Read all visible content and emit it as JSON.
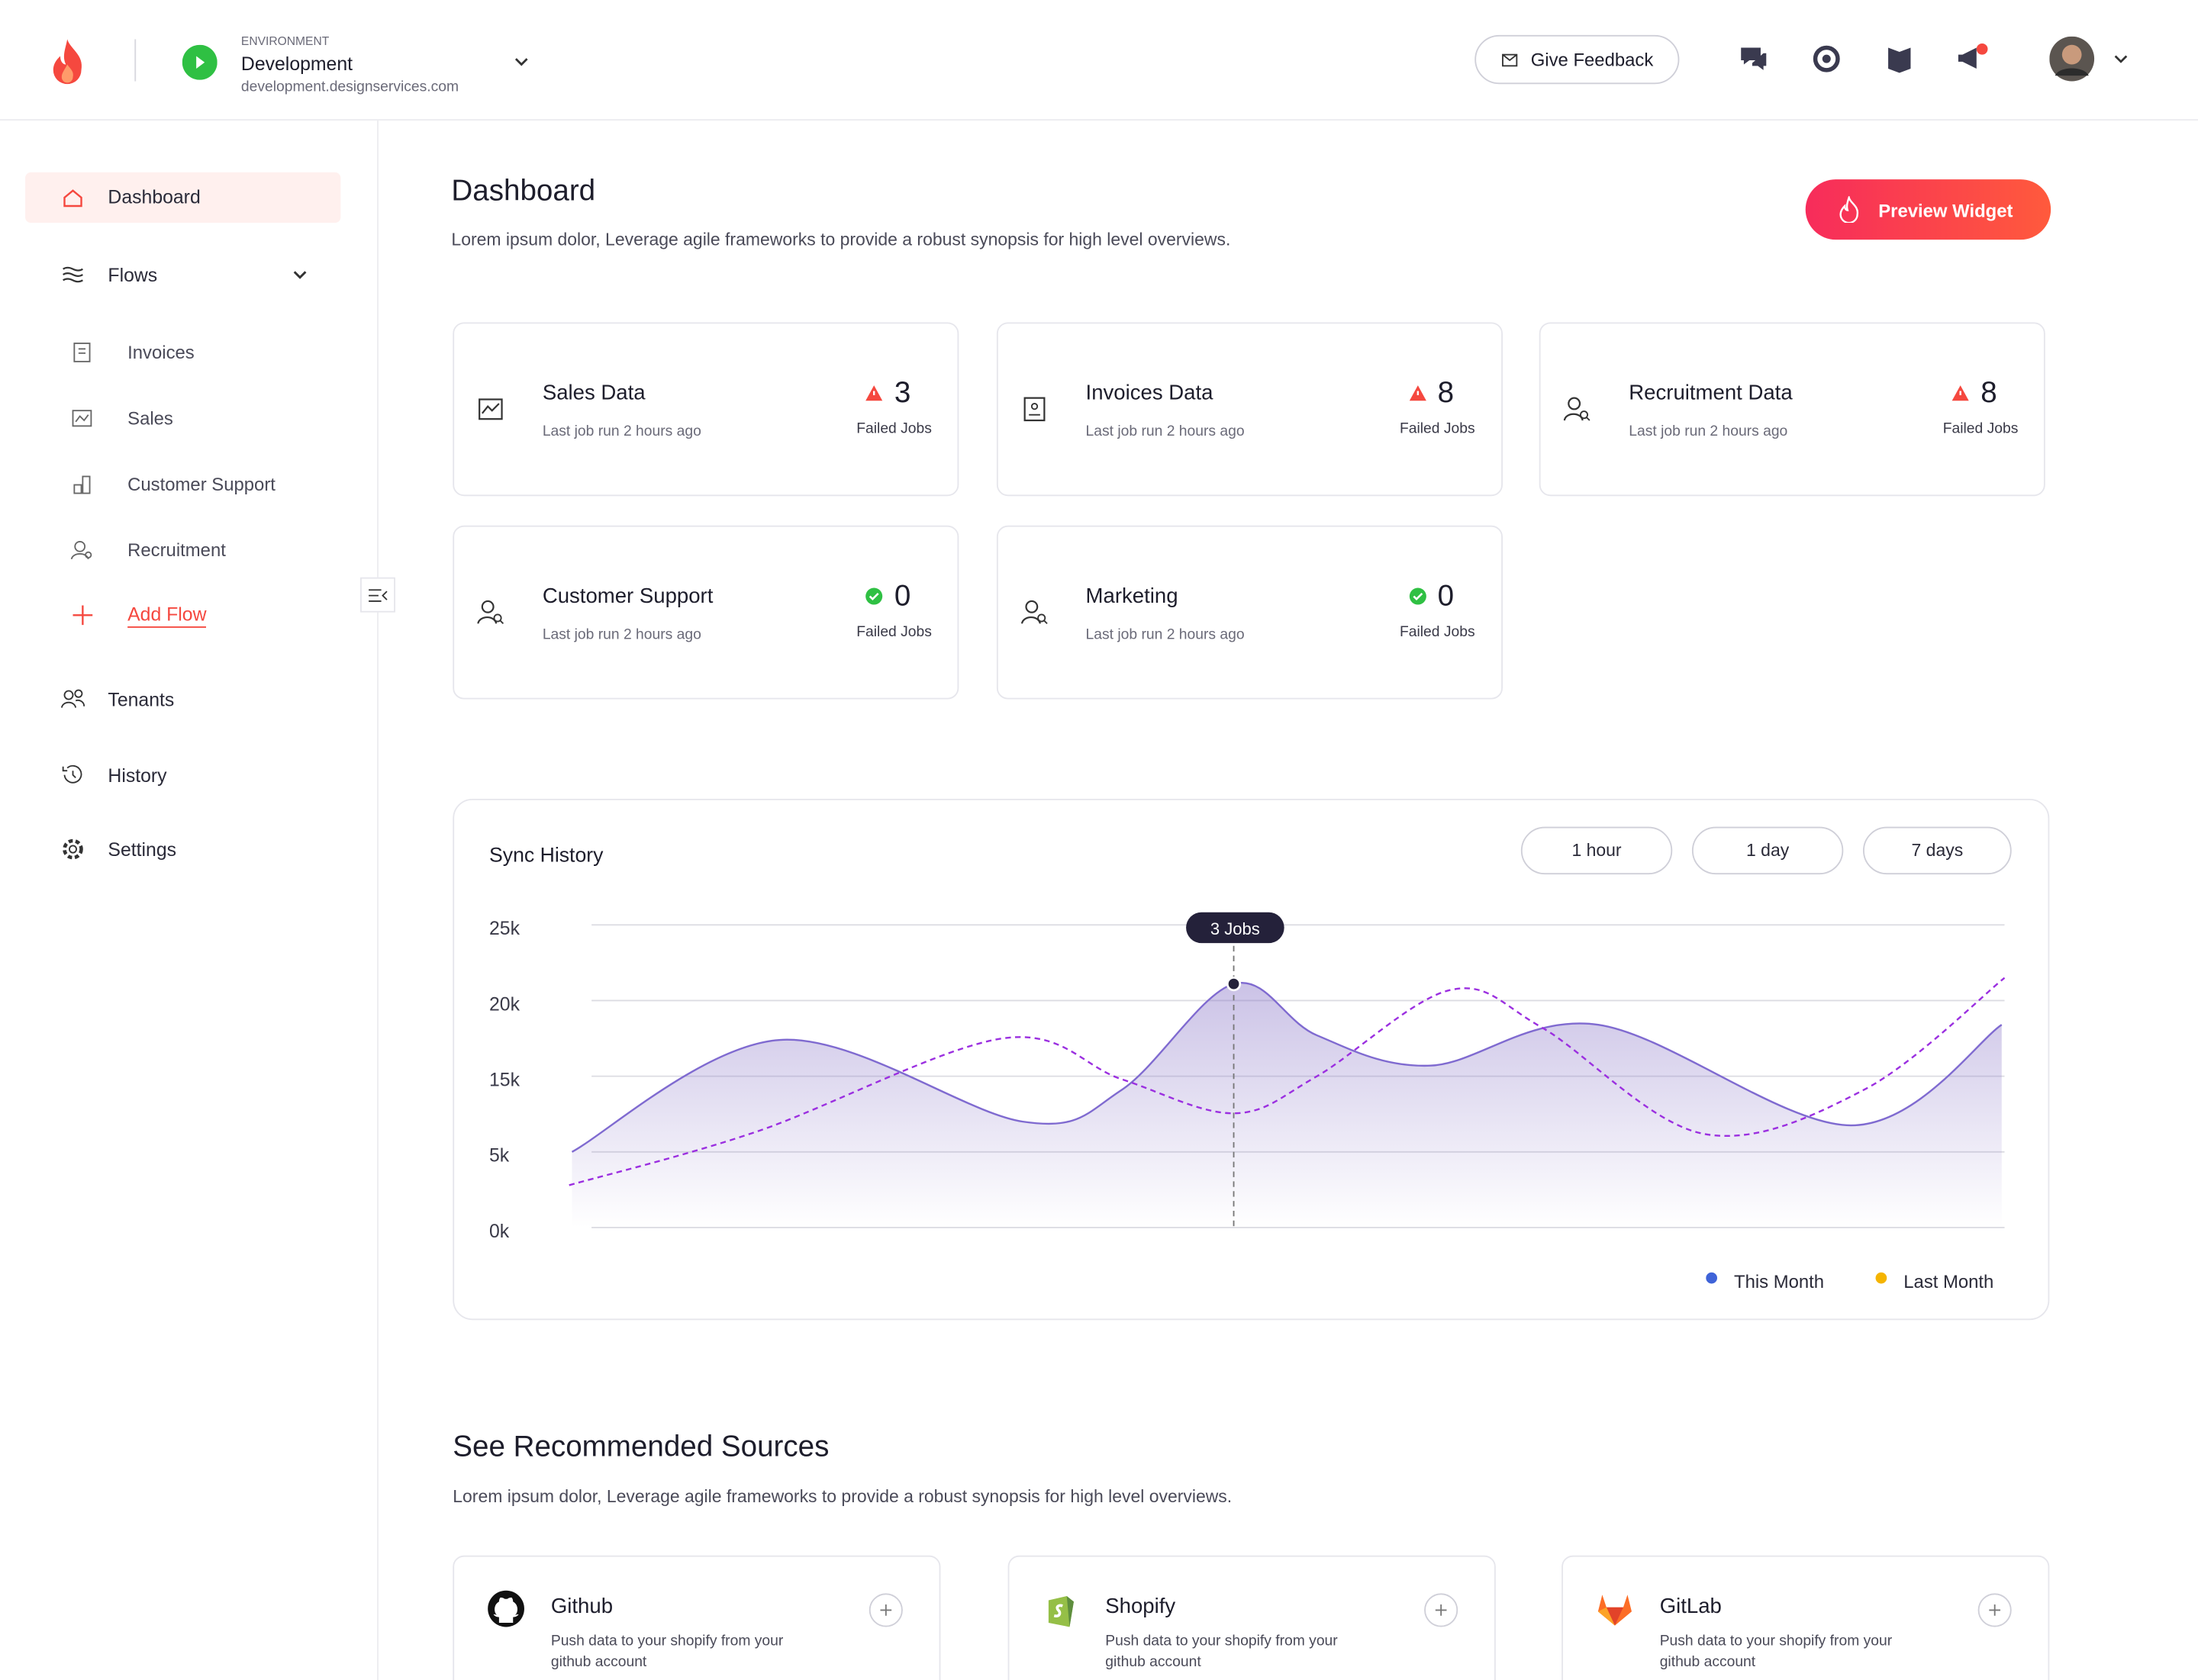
{
  "header": {
    "env_label": "ENVIRONMENT",
    "env_name": "Development",
    "env_url": "development.designservices.com",
    "feedback": "Give Feedback"
  },
  "sidebar": {
    "dashboard": "Dashboard",
    "flows": "Flows",
    "flow_items": [
      "Invoices",
      "Sales",
      "Customer Support",
      "Recruitment"
    ],
    "add_flow": "Add Flow",
    "bottom_items": [
      "Tenants",
      "History",
      "Settings"
    ]
  },
  "page": {
    "title": "Dashboard",
    "subtitle": "Lorem ipsum dolor, Leverage agile frameworks to provide a robust synopsis for high level overviews.",
    "preview": "Preview Widget"
  },
  "cards": [
    {
      "title": "Sales Data",
      "subtitle": "Last job run 2 hours ago",
      "count": 3,
      "count_label": "Failed Jobs"
    },
    {
      "title": "Invoices Data",
      "subtitle": "Last job run 2 hours ago",
      "count": 8,
      "count_label": "Failed Jobs"
    },
    {
      "title": "Recruitment Data",
      "subtitle": "Last job run 2 hours ago",
      "count": 8,
      "count_label": "Failed Jobs"
    },
    {
      "title": "Customer Support",
      "subtitle": "Last job run 2 hours ago",
      "count": 0,
      "count_label": "Failed Jobs"
    },
    {
      "title": "Marketing",
      "subtitle": "Last job run 2 hours ago",
      "count": 0,
      "count_label": "Failed Jobs"
    }
  ],
  "chart_data": {
    "type": "line",
    "title": "Sync History",
    "ranges": [
      "1 hour",
      "1 day",
      "7 days"
    ],
    "annotation": "3 Jobs",
    "xlim": [
      0,
      100
    ],
    "ylim": [
      0,
      25000
    ],
    "yticks": [
      {
        "value": 25000,
        "label": "25k"
      },
      {
        "value": 20000,
        "label": "20k"
      },
      {
        "value": 15000,
        "label": "15k"
      },
      {
        "value": 5000,
        "label": "5k"
      },
      {
        "value": 0,
        "label": "0k"
      }
    ],
    "grid": true,
    "legend": "bottom-right",
    "series": [
      {
        "name": "This Month",
        "color": "#3f63d8",
        "line_color": "#7f6ad0",
        "area": true,
        "dashed": false,
        "x": [
          0.2,
          14.7,
          31.6,
          38.5,
          46.3,
          52.1,
          60,
          71.7,
          89.3,
          99.8
        ],
        "values": [
          5000,
          17400,
          9000,
          13200,
          21100,
          17700,
          15700,
          18400,
          8500,
          18400
        ]
      },
      {
        "name": "Last Month",
        "color": "#f5b400",
        "line_color": "#9b2fe0",
        "area": false,
        "dashed": true,
        "x": [
          0,
          13.1,
          30.2,
          38.5,
          46.3,
          52.1,
          61.4,
          67.8,
          79,
          90.2,
          100
        ],
        "values": [
          2800,
          7700,
          17500,
          14600,
          10100,
          15000,
          20700,
          18200,
          7400,
          13200,
          21500
        ]
      }
    ]
  },
  "sources": {
    "title": "See Recommended Sources",
    "subtitle": "Lorem ipsum dolor, Leverage agile frameworks to provide a robust synopsis for high level overviews.",
    "items": [
      {
        "name": "Github",
        "desc": "Push data to your shopify from your github account"
      },
      {
        "name": "Shopify",
        "desc": "Push data to your shopify from your github account"
      },
      {
        "name": "GitLab",
        "desc": "Push data to your shopify from your github account"
      }
    ]
  }
}
